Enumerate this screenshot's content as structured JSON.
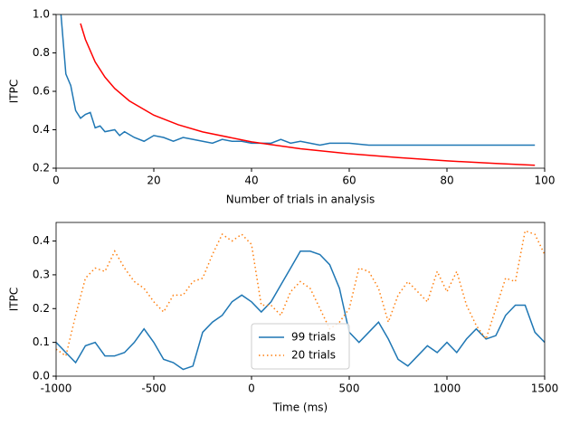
{
  "chart_data": [
    {
      "type": "line",
      "xlabel": "Number of trials in analysis",
      "ylabel": "ITPC",
      "xlim": [
        0,
        100
      ],
      "ylim": [
        0.2,
        1.0
      ],
      "xticks": [
        0,
        20,
        40,
        60,
        80,
        100
      ],
      "yticks": [
        0.2,
        0.4,
        0.6,
        0.8,
        {
          "value": 1.0,
          "label": "1.0"
        }
      ],
      "series": [
        {
          "color": "#1f77b4",
          "linestyle": "solid",
          "x": [
            1,
            2,
            3,
            4,
            5,
            6,
            7,
            8,
            9,
            10,
            12,
            13,
            14,
            16,
            18,
            20,
            22,
            24,
            26,
            28,
            30,
            32,
            34,
            36,
            38,
            40,
            42,
            44,
            46,
            48,
            50,
            52,
            54,
            56,
            58,
            60,
            64,
            68,
            72,
            76,
            80,
            84,
            88,
            92,
            98
          ],
          "values": [
            1.0,
            0.69,
            0.63,
            0.5,
            0.46,
            0.48,
            0.49,
            0.41,
            0.42,
            0.39,
            0.4,
            0.37,
            0.39,
            0.36,
            0.34,
            0.37,
            0.36,
            0.34,
            0.36,
            0.35,
            0.34,
            0.33,
            0.35,
            0.34,
            0.34,
            0.33,
            0.33,
            0.33,
            0.35,
            0.33,
            0.34,
            0.33,
            0.32,
            0.33,
            0.33,
            0.33,
            0.32,
            0.32,
            0.32,
            0.32,
            0.32,
            0.32,
            0.32,
            0.32,
            0.32
          ]
        },
        {
          "color": "#ff0000",
          "linestyle": "solid",
          "x": [
            5,
            6,
            8,
            10,
            12,
            15,
            20,
            25,
            30,
            40,
            50,
            60,
            70,
            80,
            90,
            98
          ],
          "values": [
            0.953,
            0.87,
            0.753,
            0.674,
            0.615,
            0.55,
            0.476,
            0.426,
            0.389,
            0.337,
            0.301,
            0.275,
            0.255,
            0.238,
            0.225,
            0.215
          ]
        }
      ]
    },
    {
      "type": "line",
      "xlabel": "Time (ms)",
      "ylabel": "ITPC",
      "xlim": [
        -1000,
        1500
      ],
      "ylim": [
        0,
        0.455
      ],
      "xticks": [
        -1000,
        -500,
        0,
        500,
        1000,
        1500
      ],
      "yticks": [
        {
          "value": 0,
          "label": "0.0"
        },
        0.1,
        0.2,
        0.3,
        0.4
      ],
      "legend": "lower center",
      "series": [
        {
          "name": "99 trials",
          "color": "#1f77b4",
          "linestyle": "solid",
          "x": [
            -1000,
            -950,
            -900,
            -850,
            -800,
            -750,
            -700,
            -650,
            -600,
            -550,
            -500,
            -450,
            -400,
            -350,
            -300,
            -250,
            -200,
            -150,
            -100,
            -50,
            0,
            50,
            100,
            150,
            200,
            250,
            300,
            350,
            400,
            450,
            500,
            550,
            600,
            650,
            700,
            750,
            800,
            850,
            900,
            950,
            1000,
            1050,
            1100,
            1150,
            1200,
            1250,
            1300,
            1350,
            1400,
            1450,
            1500
          ],
          "values": [
            0.1,
            0.07,
            0.04,
            0.09,
            0.1,
            0.06,
            0.06,
            0.07,
            0.1,
            0.14,
            0.1,
            0.05,
            0.04,
            0.02,
            0.03,
            0.13,
            0.16,
            0.18,
            0.22,
            0.24,
            0.22,
            0.19,
            0.22,
            0.27,
            0.32,
            0.37,
            0.37,
            0.36,
            0.33,
            0.26,
            0.13,
            0.1,
            0.13,
            0.16,
            0.11,
            0.05,
            0.03,
            0.06,
            0.09,
            0.07,
            0.1,
            0.07,
            0.11,
            0.14,
            0.11,
            0.12,
            0.18,
            0.21,
            0.21,
            0.13,
            0.1
          ]
        },
        {
          "name": "20 trials",
          "color": "#ff7f0e",
          "linestyle": "dotted",
          "x": [
            -1000,
            -950,
            -900,
            -850,
            -800,
            -750,
            -700,
            -650,
            -600,
            -550,
            -500,
            -450,
            -400,
            -350,
            -300,
            -250,
            -200,
            -150,
            -100,
            -50,
            0,
            50,
            100,
            150,
            200,
            250,
            300,
            350,
            400,
            450,
            500,
            550,
            600,
            650,
            700,
            750,
            800,
            850,
            900,
            950,
            1000,
            1050,
            1100,
            1150,
            1200,
            1250,
            1300,
            1350,
            1400,
            1450,
            1500
          ],
          "values": [
            0.08,
            0.06,
            0.18,
            0.29,
            0.32,
            0.31,
            0.37,
            0.32,
            0.28,
            0.26,
            0.22,
            0.19,
            0.24,
            0.24,
            0.28,
            0.29,
            0.36,
            0.42,
            0.4,
            0.42,
            0.39,
            0.21,
            0.21,
            0.18,
            0.25,
            0.28,
            0.26,
            0.2,
            0.14,
            0.16,
            0.2,
            0.32,
            0.31,
            0.26,
            0.16,
            0.24,
            0.28,
            0.25,
            0.22,
            0.31,
            0.25,
            0.31,
            0.21,
            0.15,
            0.11,
            0.2,
            0.29,
            0.28,
            0.43,
            0.42,
            0.36
          ]
        }
      ]
    }
  ]
}
